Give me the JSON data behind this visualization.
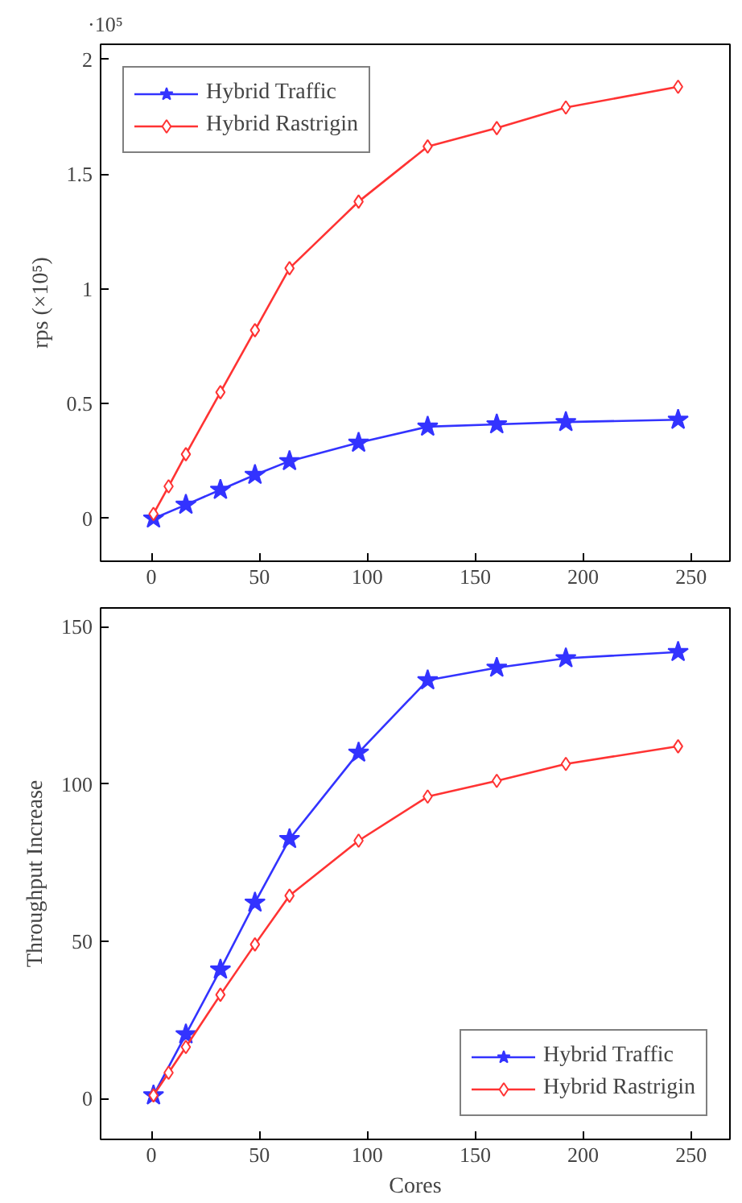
{
  "chart_data": [
    {
      "type": "line",
      "ylabel": "rps (×10⁵)",
      "annotations": [
        "·10⁵"
      ],
      "xlim": [
        -23.5,
        268
      ],
      "xticks": [
        0,
        50,
        100,
        150,
        200,
        250
      ],
      "ylim": [
        -0.186,
        2.065
      ],
      "yticks": [
        0,
        0.5,
        1,
        1.5,
        2
      ],
      "grid": false,
      "legend": "top left",
      "line_style": "solid",
      "series": [
        {
          "name": "Hybrid Traffic",
          "color": "#3333ff",
          "marker": "star",
          "x": [
            1,
            16,
            32,
            48,
            64,
            96,
            128,
            160,
            192,
            244
          ],
          "values": [
            0,
            0.06,
            0.125,
            0.19,
            0.25,
            0.33,
            0.4,
            0.41,
            0.42,
            0.43
          ]
        },
        {
          "name": "Hybrid Rastrigin",
          "color": "#ff3333",
          "marker": "diamond",
          "x": [
            1,
            8,
            16,
            32,
            48,
            64,
            96,
            128,
            160,
            192,
            244
          ],
          "values": [
            0.02,
            0.14,
            0.28,
            0.55,
            0.82,
            1.09,
            1.38,
            1.62,
            1.7,
            1.79,
            1.88
          ]
        }
      ]
    },
    {
      "type": "line",
      "xlabel": "Cores",
      "ylabel": "Throughput Increase",
      "xlim": [
        -23.5,
        268
      ],
      "xticks": [
        0,
        50,
        100,
        150,
        200,
        250
      ],
      "ylim": [
        -13,
        156
      ],
      "yticks": [
        0,
        50,
        100,
        150
      ],
      "grid": false,
      "legend": "bottom right",
      "line_style": "solid",
      "series": [
        {
          "name": "Hybrid Traffic",
          "color": "#3333ff",
          "marker": "star",
          "x": [
            1,
            16,
            32,
            48,
            64,
            96,
            128,
            160,
            192,
            244
          ],
          "values": [
            1,
            20.4,
            41,
            62.3,
            82.5,
            110,
            133,
            137,
            140,
            142
          ]
        },
        {
          "name": "Hybrid Rastrigin",
          "color": "#ff3333",
          "marker": "diamond",
          "x": [
            1,
            8,
            16,
            32,
            48,
            64,
            96,
            128,
            160,
            192,
            244
          ],
          "values": [
            1,
            8.2,
            16.4,
            33,
            49,
            64.5,
            82,
            96,
            101,
            106.4,
            112
          ]
        }
      ]
    }
  ]
}
